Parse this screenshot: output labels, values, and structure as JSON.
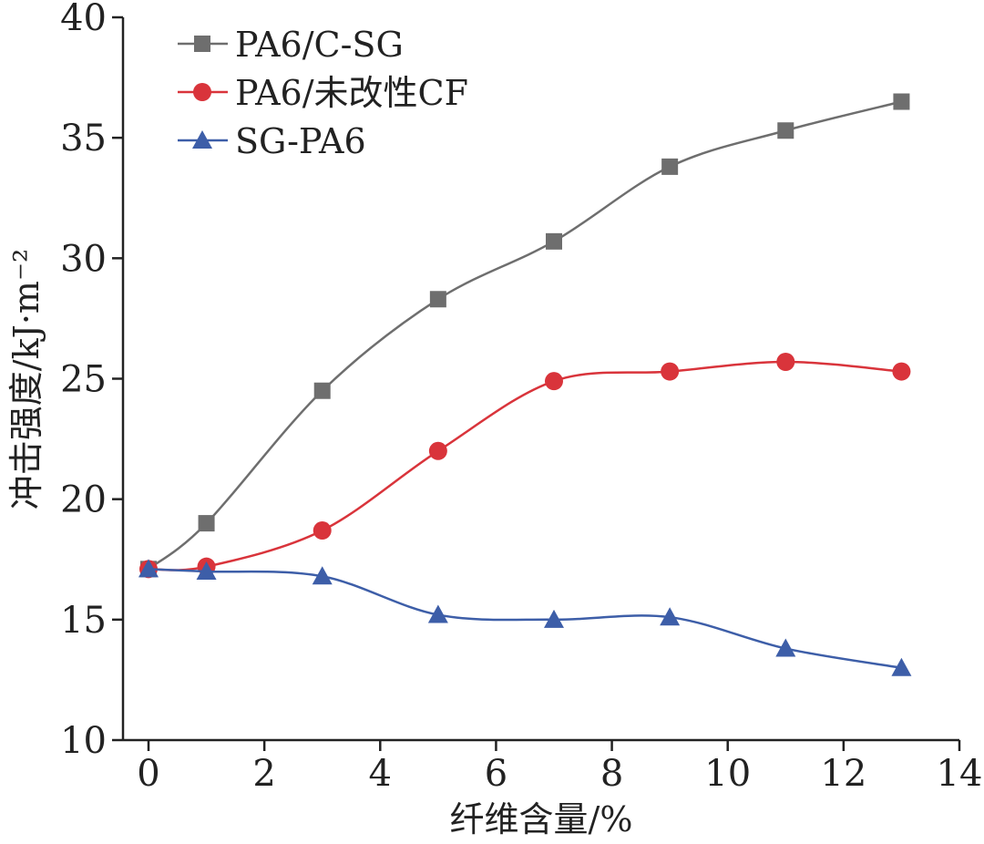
{
  "chart_data": {
    "type": "line",
    "title": "",
    "xlabel": "纤维含量/%",
    "ylabel": "冲击强度/kJ·m⁻²",
    "xlim": [
      -0.45,
      14
    ],
    "ylim": [
      10,
      40
    ],
    "xticks": [
      0,
      2,
      4,
      6,
      8,
      10,
      12,
      14
    ],
    "yticks": [
      10,
      15,
      20,
      25,
      30,
      35,
      40
    ],
    "grid": false,
    "legend_position": "top-left",
    "x": [
      0,
      1,
      3,
      5,
      7,
      9,
      11,
      13
    ],
    "series": [
      {
        "name": "PA6/C-SG",
        "marker": "square",
        "color": "#6e6e6e",
        "values": [
          17.1,
          19.0,
          24.5,
          28.3,
          30.7,
          33.8,
          35.3,
          36.5
        ]
      },
      {
        "name": "PA6/未改性CF",
        "marker": "circle",
        "color": "#d9343b",
        "values": [
          17.1,
          17.2,
          18.7,
          22.0,
          24.9,
          25.3,
          25.7,
          25.3
        ]
      },
      {
        "name": "SG-PA6",
        "marker": "triangle",
        "color": "#3d5ea8",
        "values": [
          17.1,
          17.0,
          16.8,
          15.2,
          15.0,
          15.1,
          13.8,
          13.0
        ]
      }
    ]
  }
}
